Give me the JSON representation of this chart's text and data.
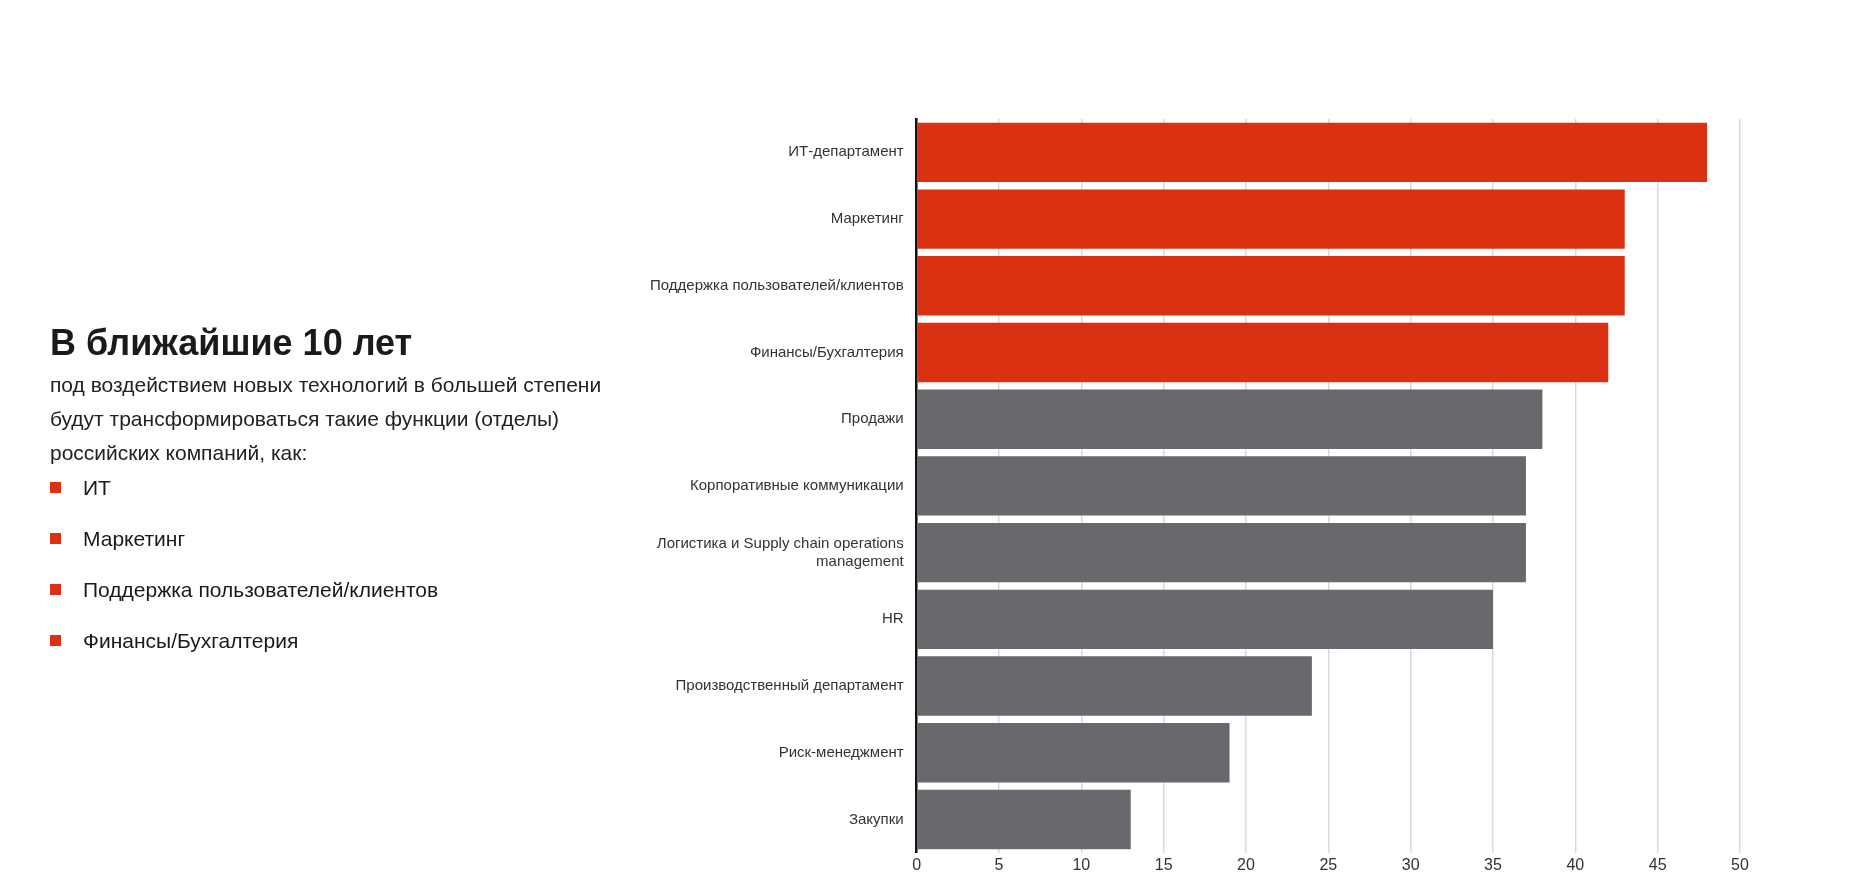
{
  "chart_data": {
    "type": "bar",
    "orientation": "horizontal",
    "title": "В ближайшие 10 лет",
    "subtitle": "под воздействием новых технологий в большей степени будут трансформироваться такие функции (отделы) российских компаний, как:",
    "annotations": [
      "ИТ",
      "Маркетинг",
      "Поддержка пользователей/клиентов",
      "Финансы/Бухгалтерия"
    ],
    "categories": [
      "ИТ-департамент",
      "Маркетинг",
      "Поддержка пользователей/клиентов",
      "Финансы/Бухгалтерия",
      "Продажи",
      "Корпоративные коммуникации",
      "Логистика и Supply chain operations management",
      "HR",
      "Производственный департамент",
      "Риск-менеджмент",
      "Закупки"
    ],
    "values": [
      48,
      43,
      43,
      42,
      38,
      37,
      37,
      35,
      24,
      19,
      13
    ],
    "colors": [
      "#d93112",
      "#d93112",
      "#d93112",
      "#d93112",
      "#69686d",
      "#69686d",
      "#69686d",
      "#69686d",
      "#69686d",
      "#69686d",
      "#69686d"
    ],
    "xlim": [
      0,
      50
    ],
    "xticks": [
      0,
      5,
      10,
      15,
      20,
      25,
      30,
      35,
      40,
      45,
      50
    ],
    "grid": "x",
    "legend": false
  }
}
